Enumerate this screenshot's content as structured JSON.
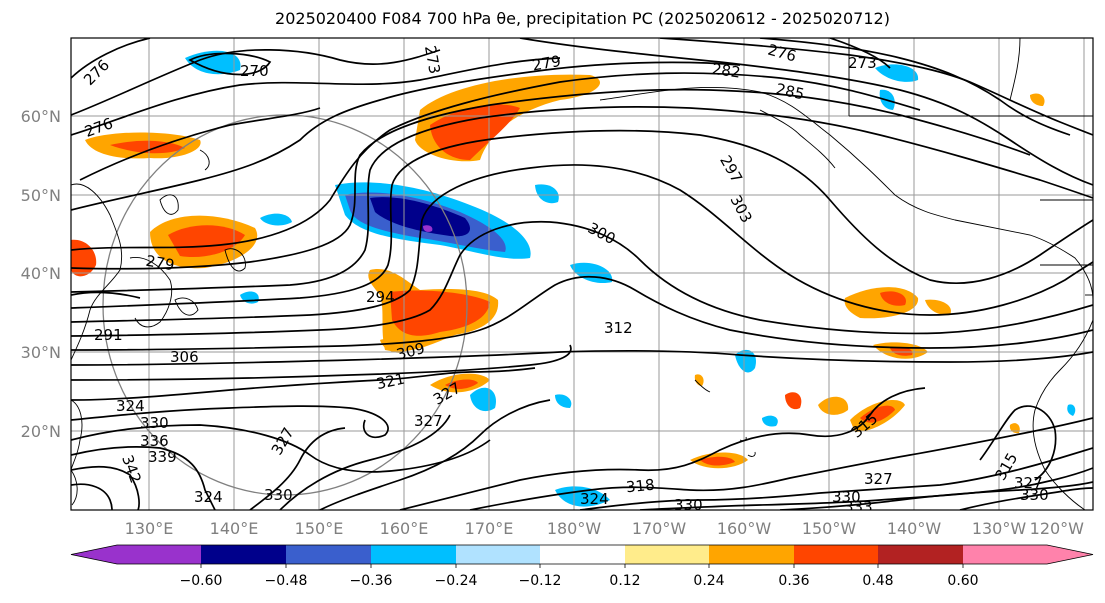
{
  "title": "2025020400 F084 700 hPa θe, precipitation PC (2025020612 - 2025020712)",
  "map": {
    "lat_labels": [
      "60°N",
      "50°N",
      "40°N",
      "30°N",
      "20°N"
    ],
    "lon_labels": [
      "130°E",
      "140°E",
      "150°E",
      "160°E",
      "170°E",
      "180°W",
      "170°W",
      "160°W",
      "150°W",
      "140°W",
      "130°W",
      "120°W"
    ],
    "contour_labels": [
      {
        "text": "276"
      },
      {
        "text": "270"
      },
      {
        "text": "276"
      },
      {
        "text": "273"
      },
      {
        "text": "279"
      },
      {
        "text": "276"
      },
      {
        "text": "282"
      },
      {
        "text": "285"
      },
      {
        "text": "273"
      },
      {
        "text": "297"
      },
      {
        "text": "303"
      },
      {
        "text": "300"
      },
      {
        "text": "279"
      },
      {
        "text": "294"
      },
      {
        "text": "291"
      },
      {
        "text": "306"
      },
      {
        "text": "312"
      },
      {
        "text": "309"
      },
      {
        "text": "321"
      },
      {
        "text": "324"
      },
      {
        "text": "330"
      },
      {
        "text": "336"
      },
      {
        "text": "339"
      },
      {
        "text": "342"
      },
      {
        "text": "327"
      },
      {
        "text": "327"
      },
      {
        "text": "324"
      },
      {
        "text": "327"
      },
      {
        "text": "330"
      },
      {
        "text": "324"
      },
      {
        "text": "318"
      },
      {
        "text": "330"
      },
      {
        "text": "330"
      },
      {
        "text": "327"
      },
      {
        "text": "333"
      },
      {
        "text": "315"
      },
      {
        "text": "315"
      },
      {
        "text": "327"
      },
      {
        "text": "330"
      }
    ]
  },
  "colorbar": {
    "colors": [
      "#9932cc",
      "#00008b",
      "#3a5fcd",
      "#00bfff",
      "#b0e2ff",
      "#ffffff",
      "#ffec8b",
      "#ffa500",
      "#ff4500",
      "#b22222",
      "#ff82ab"
    ],
    "tick_labels": [
      "−0.60",
      "−0.48",
      "−0.36",
      "−0.24",
      "−0.12",
      "0.12",
      "0.24",
      "0.36",
      "0.48",
      "0.60"
    ]
  }
}
